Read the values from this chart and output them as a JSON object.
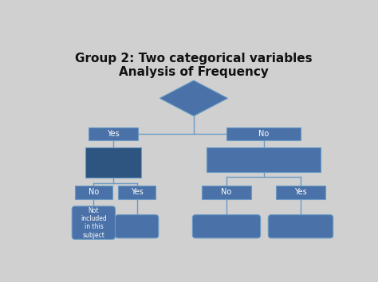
{
  "title_line1": "Group 2: Two categorical variables",
  "title_line2": "Analysis of Frequency",
  "title_fontsize": 11,
  "bg_color": "#d0d0d0",
  "box_fill": "#4a72a8",
  "box_edge": "#6a9ac4",
  "box_dark_fill": "#2e5580",
  "text_color": "white",
  "title_color": "#111111",
  "note_text": "Not\nincluded\nin this\nsubject",
  "line_color": "#6a9ac4",
  "line_width": 1.0
}
